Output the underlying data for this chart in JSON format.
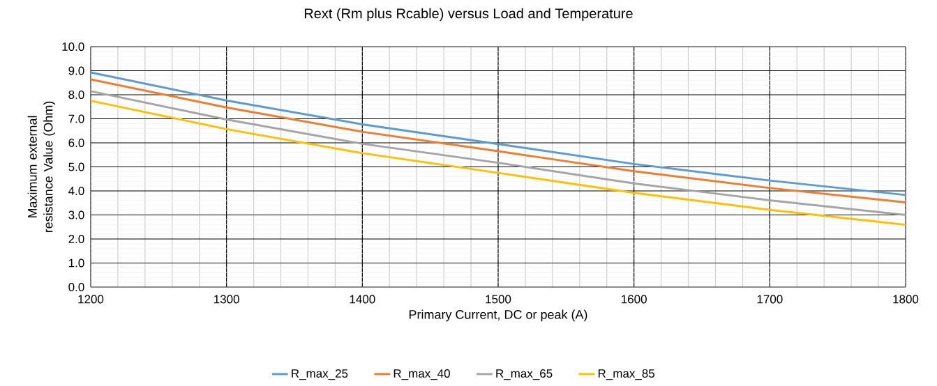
{
  "chart_data": {
    "type": "line",
    "title": "Rext (Rm plus Rcable) versus Load and Temperature",
    "xlabel": "Primary Current, DC or peak (A)",
    "ylabel": "Maximum external resistance Value (Ohm)",
    "x": [
      1200,
      1300,
      1400,
      1500,
      1600,
      1700,
      1800
    ],
    "series": [
      {
        "name": "R_max_25",
        "color": "#5b9bd5",
        "values": [
          8.93,
          7.76,
          6.77,
          5.95,
          5.12,
          4.43,
          3.83
        ]
      },
      {
        "name": "R_max_40",
        "color": "#ed7d31",
        "values": [
          8.64,
          7.47,
          6.46,
          5.65,
          4.82,
          4.12,
          3.52
        ]
      },
      {
        "name": "R_max_65",
        "color": "#a5a5a5",
        "values": [
          8.15,
          6.97,
          5.96,
          5.17,
          4.31,
          3.61,
          3.0
        ]
      },
      {
        "name": "R_max_85",
        "color": "#ffc000",
        "values": [
          7.75,
          6.57,
          5.57,
          4.75,
          3.92,
          3.21,
          2.59
        ]
      }
    ],
    "xlim": [
      1200,
      1800
    ],
    "xticks": [
      1200,
      1300,
      1400,
      1500,
      1600,
      1700,
      1800
    ],
    "ylim": [
      0,
      10
    ],
    "yticks": [
      {
        "value": 0,
        "label": "0.0"
      },
      {
        "value": 1,
        "label": "1.0"
      },
      {
        "value": 2,
        "label": "2.0"
      },
      {
        "value": 3,
        "label": "3.0"
      },
      {
        "value": 4,
        "label": "4.0"
      },
      {
        "value": 5,
        "label": "5.0"
      },
      {
        "value": 6,
        "label": "6.0"
      },
      {
        "value": 7,
        "label": "7.0"
      },
      {
        "value": 8,
        "label": "8.0"
      },
      {
        "value": 9,
        "label": "9.0"
      },
      {
        "value": 10,
        "label": "10.0"
      }
    ],
    "grid": true,
    "legend": "bottom",
    "line_style": "solid"
  }
}
